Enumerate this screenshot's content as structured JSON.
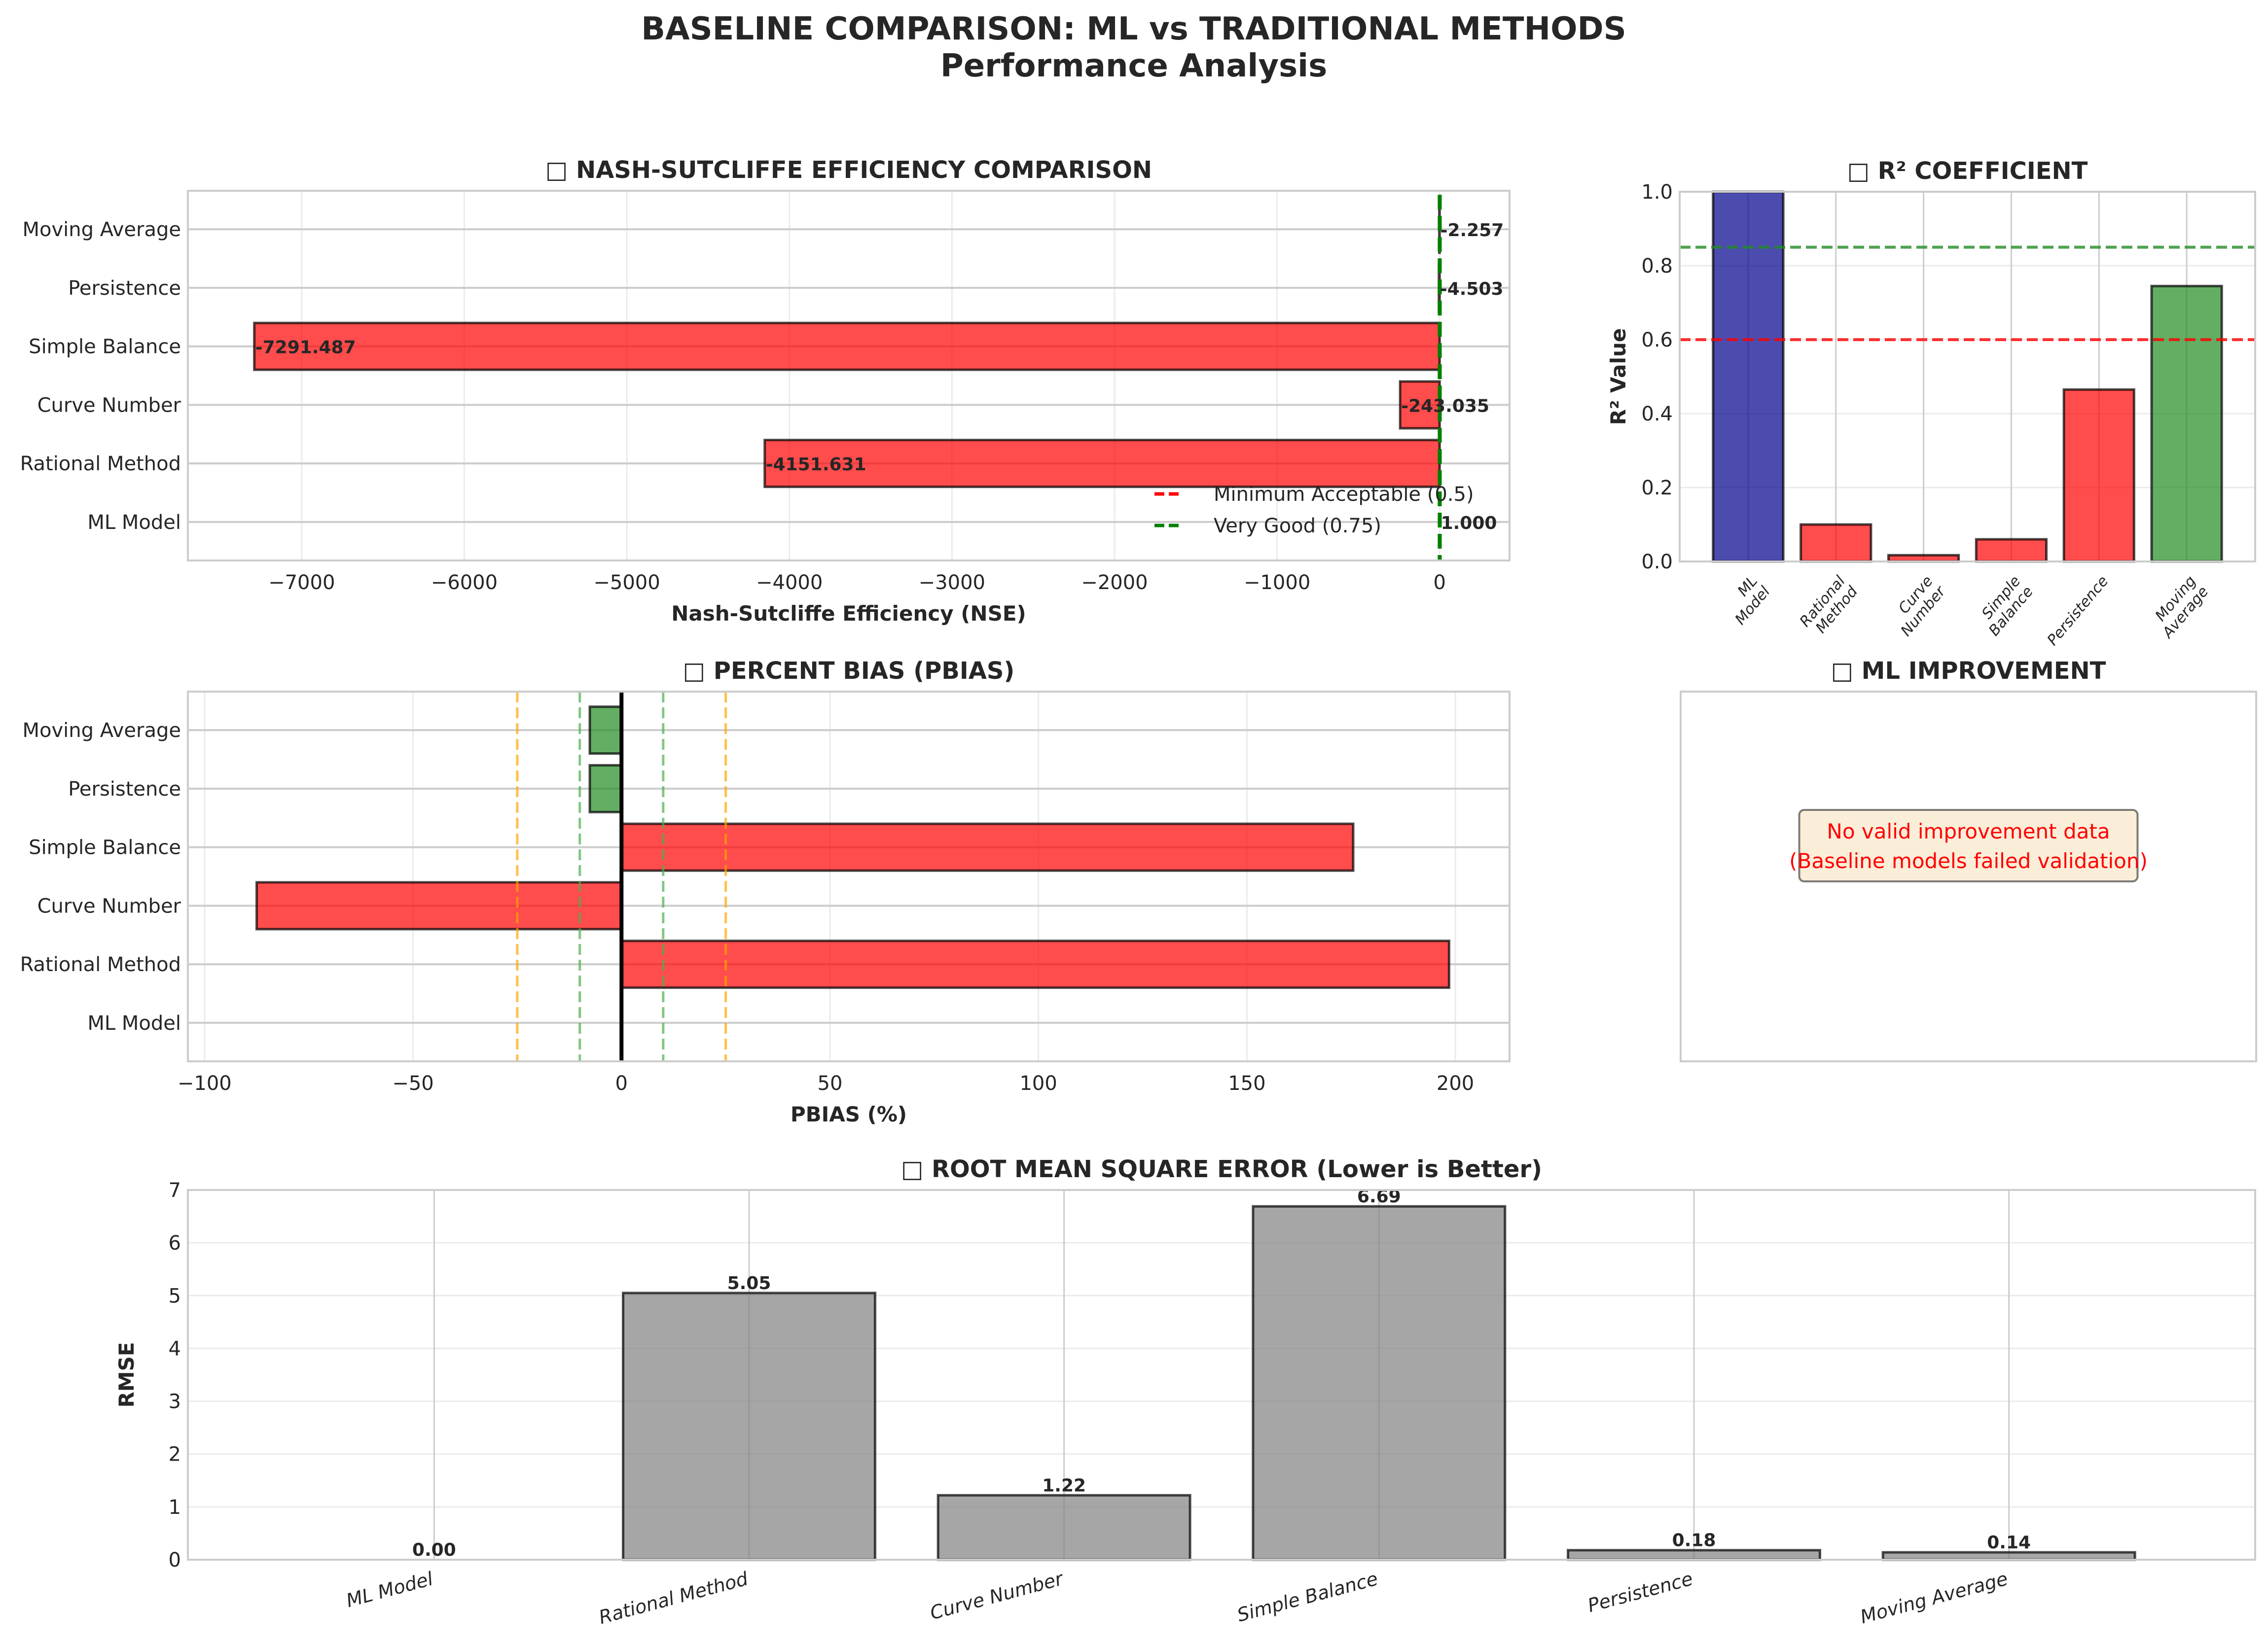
{
  "figure": {
    "title_line1": "BASELINE COMPARISON: ML vs TRADITIONAL METHODS",
    "title_line2": "Performance Analysis"
  },
  "colors": {
    "good": "#228B22",
    "bad": "#FF0000",
    "ml": "#00008B",
    "neutral": "#808080",
    "very_good_line": "#008000",
    "min_line": "#FF0000",
    "pbias_inner": "#4CAF50",
    "pbias_outer": "#FFA500"
  },
  "chart_data": [
    {
      "id": "nse",
      "type": "bar",
      "orientation": "horizontal",
      "title": "□ NASH-SUTCLIFFE EFFICIENCY COMPARISON",
      "xlabel": "Nash-Sutcliffe Efficiency (NSE)",
      "ylabel": "",
      "categories": [
        "ML Model",
        "Rational Method",
        "Curve Number",
        "Simple Balance",
        "Persistence",
        "Moving Average"
      ],
      "values": [
        1.0,
        -4151.631,
        -243.035,
        -7291.487,
        -4.503,
        -2.257
      ],
      "value_labels": [
        "1.000",
        "-4151.631",
        "-243.035",
        "-7291.487",
        "-4.503",
        "-2.257"
      ],
      "bar_colors": [
        "ml",
        "bad",
        "bad",
        "bad",
        "bad",
        "bad"
      ],
      "xlim": [
        -7700,
        430
      ],
      "xticks": [
        -7000,
        -6000,
        -5000,
        -4000,
        -3000,
        -2000,
        -1000,
        0
      ],
      "xtick_labels": [
        "−7000",
        "−6000",
        "−5000",
        "−4000",
        "−3000",
        "−2000",
        "−1000",
        "0"
      ],
      "reference_lines": [
        {
          "value": 0.5,
          "label": "Minimum Acceptable (0.5)",
          "color": "min_line"
        },
        {
          "value": 0.75,
          "label": "Very Good (0.75)",
          "color": "very_good_line"
        }
      ],
      "legend": {
        "position": "lower-right",
        "entries": [
          "Minimum Acceptable (0.5)",
          "Very Good (0.75)"
        ]
      },
      "grid": true
    },
    {
      "id": "r2",
      "type": "bar",
      "orientation": "vertical",
      "title": "□ R² COEFFICIENT",
      "xlabel": "",
      "ylabel": "R² Value",
      "categories": [
        "ML\nModel",
        "Rational\nMethod",
        "Curve\nNumber",
        "Simple\nBalance",
        "Persistence",
        "Moving\nAverage"
      ],
      "values": [
        1.0,
        0.1,
        0.017,
        0.06,
        0.465,
        0.745
      ],
      "bar_colors": [
        "ml",
        "bad",
        "bad",
        "bad",
        "bad",
        "good"
      ],
      "ylim": [
        0,
        1.0
      ],
      "yticks": [
        0.0,
        0.2,
        0.4,
        0.6,
        0.8,
        1.0
      ],
      "ytick_labels": [
        "0.0",
        "0.2",
        "0.4",
        "0.6",
        "0.8",
        "1.0"
      ],
      "reference_lines": [
        {
          "value": 0.85,
          "color": "good"
        },
        {
          "value": 0.6,
          "color": "bad"
        }
      ],
      "grid": true
    },
    {
      "id": "pbias",
      "type": "bar",
      "orientation": "horizontal",
      "title": "□ PERCENT BIAS (PBIAS)",
      "xlabel": "PBIAS (%)",
      "ylabel": "",
      "categories": [
        "ML Model",
        "Rational Method",
        "Curve Number",
        "Simple Balance",
        "Persistence",
        "Moving Average"
      ],
      "values": [
        0.0,
        198.5,
        -87.5,
        175.5,
        -7.6,
        -7.6
      ],
      "bar_colors": [
        "good",
        "bad",
        "bad",
        "bad",
        "good",
        "good"
      ],
      "xlim": [
        -104,
        213
      ],
      "xticks": [
        -100,
        -50,
        0,
        50,
        100,
        150,
        200
      ],
      "xtick_labels": [
        "−100",
        "−50",
        "0",
        "50",
        "100",
        "150",
        "200"
      ],
      "reference_lines": [
        {
          "value": 0,
          "color": "#000000",
          "style": "solid"
        },
        {
          "value": 10,
          "color": "pbias_inner",
          "style": "dashed"
        },
        {
          "value": -10,
          "color": "pbias_inner",
          "style": "dashed"
        },
        {
          "value": 25,
          "color": "pbias_outer",
          "style": "dashed"
        },
        {
          "value": -25,
          "color": "pbias_outer",
          "style": "dashed"
        }
      ],
      "grid": true
    },
    {
      "id": "improvement",
      "type": "table",
      "title": "□ ML IMPROVEMENT",
      "message_line1": "No valid improvement data",
      "message_line2": "(Baseline models failed validation)"
    },
    {
      "id": "rmse",
      "type": "bar",
      "orientation": "vertical",
      "title": "□ ROOT MEAN SQUARE ERROR (Lower is Better)",
      "xlabel": "",
      "ylabel": "RMSE",
      "categories": [
        "ML Model",
        "Rational Method",
        "Curve Number",
        "Simple Balance",
        "Persistence",
        "Moving Average"
      ],
      "values": [
        0.0,
        5.05,
        1.22,
        6.69,
        0.18,
        0.14
      ],
      "value_labels": [
        "0.00",
        "5.05",
        "1.22",
        "6.69",
        "0.18",
        "0.14"
      ],
      "bar_colors": [
        "neutral",
        "neutral",
        "neutral",
        "neutral",
        "neutral",
        "neutral"
      ],
      "ylim": [
        0,
        7
      ],
      "yticks": [
        0,
        1,
        2,
        3,
        4,
        5,
        6,
        7
      ],
      "ytick_labels": [
        "0",
        "1",
        "2",
        "3",
        "4",
        "5",
        "6",
        "7"
      ],
      "grid": true
    }
  ]
}
